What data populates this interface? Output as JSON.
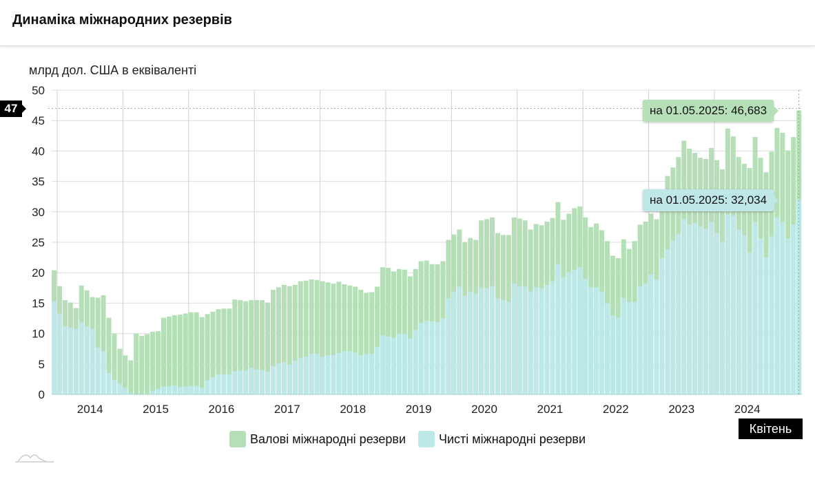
{
  "header": {
    "title": "Динаміка міжнародних резервів"
  },
  "colors": {
    "gross": "#b5dfb7",
    "net": "#bde8e8"
  },
  "hover": {
    "y_badge": "47",
    "x_badge": "Квітень",
    "gross_tooltip": "на 01.05.2025: 46,683",
    "net_tooltip": "на 01.05.2025: 32,034"
  },
  "legend": [
    {
      "label": "Валові міжнародні резерви"
    },
    {
      "label": "Чисті міжнародні резерви"
    }
  ],
  "chart_data": {
    "type": "bar",
    "title": "Динаміка міжнародних резервів",
    "ylabel": "млрд дол. США в еквіваленті",
    "xlabel": "",
    "ylim": [
      0,
      50
    ],
    "y_ticks": [
      "0",
      "5",
      "10",
      "15",
      "20",
      "25",
      "30",
      "35",
      "40",
      "45",
      "50"
    ],
    "x_ticks": [
      "2014",
      "2015",
      "2016",
      "2017",
      "2018",
      "2019",
      "2020",
      "2021",
      "2022",
      "2023",
      "2024"
    ],
    "categories_start": "2013-12",
    "frequency": "monthly",
    "grid": true,
    "legend_position": "bottom",
    "series": [
      {
        "name": "Валові міжнародні резерви",
        "values": [
          20.4,
          17.8,
          15.5,
          15.1,
          14.2,
          17.9,
          17.1,
          16.0,
          15.9,
          16.3,
          12.6,
          10.0,
          7.5,
          6.4,
          5.6,
          10.0,
          9.6,
          9.9,
          10.3,
          10.4,
          12.6,
          12.8,
          13.0,
          13.1,
          13.3,
          13.5,
          13.5,
          12.7,
          13.2,
          13.6,
          14.0,
          14.1,
          14.1,
          15.6,
          15.5,
          15.3,
          15.5,
          15.5,
          15.5,
          15.1,
          17.2,
          17.6,
          18.0,
          17.8,
          18.0,
          18.6,
          18.7,
          18.9,
          18.8,
          18.6,
          18.4,
          18.2,
          18.5,
          18.1,
          17.9,
          17.7,
          17.2,
          16.7,
          16.8,
          17.7,
          20.9,
          20.8,
          20.2,
          20.6,
          20.5,
          19.4,
          20.6,
          21.9,
          22.0,
          21.4,
          21.4,
          21.9,
          25.4,
          26.3,
          27.1,
          25.0,
          25.7,
          25.4,
          28.6,
          28.8,
          29.1,
          26.5,
          26.2,
          26.2,
          29.1,
          28.9,
          28.6,
          27.1,
          28.0,
          27.8,
          28.4,
          29.0,
          31.6,
          28.7,
          29.7,
          30.6,
          30.9,
          29.1,
          27.5,
          28.1,
          27.0,
          25.2,
          22.8,
          22.4,
          25.5,
          23.9,
          25.2,
          27.9,
          28.4,
          29.7,
          28.8,
          32.0,
          35.9,
          37.3,
          39.0,
          41.7,
          40.4,
          39.7,
          38.9,
          38.7,
          40.5,
          38.5,
          37.0,
          43.7,
          42.4,
          39.0,
          37.9,
          37.2,
          42.3,
          38.9,
          36.5,
          39.9,
          43.8,
          43.0,
          40.1,
          42.3,
          46.683
        ]
      },
      {
        "name": "Чисті міжнародні резерви",
        "values": [
          15.3,
          13.3,
          11.2,
          11.0,
          10.8,
          11.8,
          11.2,
          10.8,
          7.7,
          7.1,
          3.5,
          2.4,
          1.8,
          1.1,
          0.2,
          0.0,
          0.0,
          0.1,
          0.6,
          0.9,
          1.3,
          1.3,
          1.5,
          1.2,
          1.3,
          1.4,
          1.4,
          1.1,
          2.3,
          2.8,
          3.3,
          3.3,
          3.3,
          3.8,
          3.9,
          3.9,
          4.3,
          4.1,
          4.0,
          3.7,
          4.6,
          5.1,
          5.3,
          4.9,
          5.5,
          6.0,
          6.2,
          6.7,
          6.7,
          6.2,
          6.4,
          6.5,
          6.8,
          7.1,
          7.1,
          6.9,
          6.4,
          6.6,
          6.7,
          7.8,
          9.7,
          9.5,
          9.3,
          10.0,
          9.9,
          9.2,
          10.6,
          11.8,
          12.1,
          12.0,
          11.9,
          12.5,
          15.8,
          16.9,
          17.7,
          16.2,
          16.9,
          16.5,
          17.5,
          17.5,
          17.8,
          15.8,
          15.5,
          15.2,
          18.2,
          17.8,
          17.7,
          16.9,
          17.6,
          17.4,
          18.0,
          18.6,
          21.4,
          19.2,
          20.1,
          20.5,
          20.9,
          19.0,
          17.6,
          17.6,
          16.9,
          15.0,
          13.0,
          12.6,
          15.8,
          15.2,
          15.2,
          17.8,
          18.3,
          19.7,
          18.9,
          22.4,
          23.8,
          25.3,
          26.4,
          28.8,
          27.9,
          28.2,
          27.6,
          27.2,
          28.3,
          26.5,
          25.1,
          29.6,
          29.4,
          27.1,
          26.2,
          23.3,
          28.3,
          25.6,
          22.5,
          26.0,
          29.1,
          28.3,
          25.6,
          27.9,
          32.034
        ]
      }
    ]
  }
}
